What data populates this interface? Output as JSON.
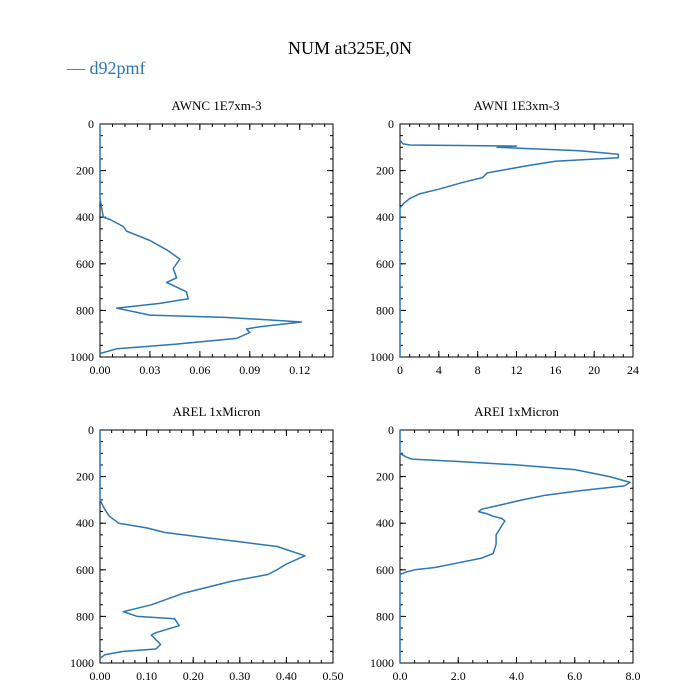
{
  "figure": {
    "title": "NUM at325E,0N",
    "legend": {
      "label": "d92pmf",
      "color": "#2a77b4"
    }
  },
  "chart_data": [
    {
      "type": "line",
      "title": "AWNC  1E7xm-3",
      "xlim": [
        0,
        0.14
      ],
      "ylim": [
        1000,
        0
      ],
      "x_ticks": [
        0,
        0.03,
        0.06,
        0.09,
        0.12
      ],
      "x_tick_labels": [
        "0.00",
        "0.03",
        "0.06",
        "0.09",
        "0.12"
      ],
      "y_ticks": [
        0,
        200,
        400,
        600,
        800,
        1000
      ],
      "y_tick_labels": [
        "0",
        "200",
        "400",
        "600",
        "800",
        "1000"
      ],
      "series": [
        {
          "name": "d92pmf",
          "x": [
            0,
            0,
            0.001,
            0.002,
            0.006,
            0.014,
            0.016,
            0.03,
            0.04,
            0.048,
            0.044,
            0.046,
            0.04,
            0.052,
            0.053,
            0.036,
            0.01,
            0.03,
            0.075,
            0.1,
            0.121,
            0.096,
            0.088,
            0.09,
            0.082,
            0.045,
            0.01,
            0
          ],
          "y": [
            0,
            320,
            360,
            400,
            410,
            440,
            460,
            500,
            540,
            580,
            620,
            660,
            680,
            720,
            750,
            770,
            790,
            820,
            830,
            840,
            850,
            870,
            880,
            895,
            920,
            945,
            965,
            985
          ]
        }
      ]
    },
    {
      "type": "line",
      "title": "AWNI  1E3xm-3",
      "xlim": [
        0,
        24
      ],
      "ylim": [
        1000,
        0
      ],
      "x_ticks": [
        0,
        4,
        8,
        12,
        16,
        20,
        24
      ],
      "x_tick_labels": [
        "0",
        "4",
        "8",
        "12",
        "16",
        "20",
        "24"
      ],
      "y_ticks": [
        0,
        200,
        400,
        600,
        800,
        1000
      ],
      "y_tick_labels": [
        "0",
        "200",
        "400",
        "600",
        "800",
        "1000"
      ],
      "series": [
        {
          "name": "d92pmf",
          "x": [
            0,
            0.3,
            1,
            12,
            10,
            18.5,
            22.5,
            22.5,
            16,
            13,
            11,
            9,
            8.5,
            6.5,
            4,
            2,
            1,
            0.4,
            0,
            0
          ],
          "y": [
            70,
            85,
            90,
            95,
            100,
            115,
            130,
            145,
            160,
            180,
            195,
            210,
            230,
            250,
            280,
            300,
            320,
            340,
            360,
            1000
          ]
        }
      ]
    },
    {
      "type": "line",
      "title": "AREL  1xMicron",
      "xlim": [
        0,
        0.5
      ],
      "ylim": [
        1000,
        0
      ],
      "x_ticks": [
        0,
        0.1,
        0.2,
        0.3,
        0.4,
        0.5
      ],
      "x_tick_labels": [
        "0.00",
        "0.10",
        "0.20",
        "0.30",
        "0.40",
        "0.50"
      ],
      "y_ticks": [
        0,
        200,
        400,
        600,
        800,
        1000
      ],
      "y_tick_labels": [
        "0",
        "200",
        "400",
        "600",
        "800",
        "1000"
      ],
      "series": [
        {
          "name": "d92pmf",
          "x": [
            0,
            0,
            0.005,
            0.01,
            0.02,
            0.04,
            0.1,
            0.14,
            0.22,
            0.3,
            0.38,
            0.44,
            0.4,
            0.38,
            0.36,
            0.28,
            0.18,
            0.11,
            0.05,
            0.08,
            0.16,
            0.17,
            0.12,
            0.11,
            0.12,
            0.13,
            0.12,
            0.05,
            0.01,
            0
          ],
          "y": [
            0,
            300,
            320,
            340,
            370,
            400,
            420,
            440,
            460,
            480,
            500,
            540,
            575,
            600,
            620,
            650,
            700,
            750,
            780,
            800,
            810,
            840,
            870,
            880,
            900,
            920,
            940,
            950,
            965,
            980
          ]
        }
      ]
    },
    {
      "type": "line",
      "title": "AREI  1xMicron",
      "xlim": [
        0,
        8
      ],
      "ylim": [
        1000,
        0
      ],
      "x_ticks": [
        0,
        2,
        4,
        6,
        8
      ],
      "x_tick_labels": [
        "0.0",
        "2.0",
        "4.0",
        "6.0",
        "8.0"
      ],
      "y_ticks": [
        0,
        200,
        400,
        600,
        800,
        1000
      ],
      "y_tick_labels": [
        "0",
        "200",
        "400",
        "600",
        "800",
        "1000"
      ],
      "series": [
        {
          "name": "d92pmf",
          "x": [
            0,
            0,
            0.2,
            0.4,
            2,
            4,
            6,
            7.2,
            7.9,
            7.7,
            6.2,
            5,
            4.2,
            3.5,
            2.8,
            2.7,
            3,
            3.2,
            3.5,
            3.6,
            3.5,
            3.3,
            3.3,
            3.2,
            2.8,
            2,
            1.2,
            0.5,
            0.2,
            0,
            0
          ],
          "y": [
            0,
            100,
            115,
            125,
            135,
            150,
            170,
            200,
            225,
            240,
            260,
            280,
            300,
            320,
            340,
            350,
            360,
            370,
            380,
            390,
            410,
            450,
            490,
            530,
            550,
            570,
            590,
            600,
            610,
            620,
            1000
          ]
        }
      ]
    }
  ]
}
